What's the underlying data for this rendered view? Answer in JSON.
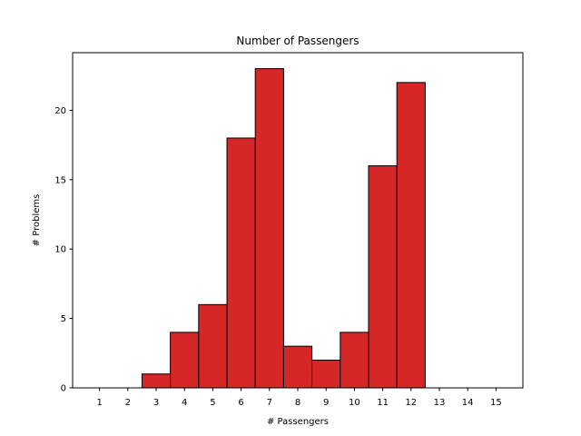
{
  "chart_data": {
    "type": "bar",
    "title": "Number of Passengers",
    "xlabel": "# Passengers",
    "ylabel": "# Problems",
    "categories": [
      "1",
      "2",
      "3",
      "4",
      "5",
      "6",
      "7",
      "8",
      "9",
      "10",
      "11",
      "12",
      "13",
      "14",
      "15"
    ],
    "values": [
      0,
      0,
      1,
      4,
      6,
      18,
      23,
      3,
      2,
      4,
      16,
      22,
      0,
      0,
      0
    ],
    "xlim": [
      0.05,
      15.95
    ],
    "ylim": [
      0,
      24.15
    ],
    "yticks": [
      "0",
      "5",
      "10",
      "15",
      "20"
    ],
    "bar_color": "#d62728",
    "edge_color": "#000000",
    "grid": false,
    "legend": "none"
  }
}
